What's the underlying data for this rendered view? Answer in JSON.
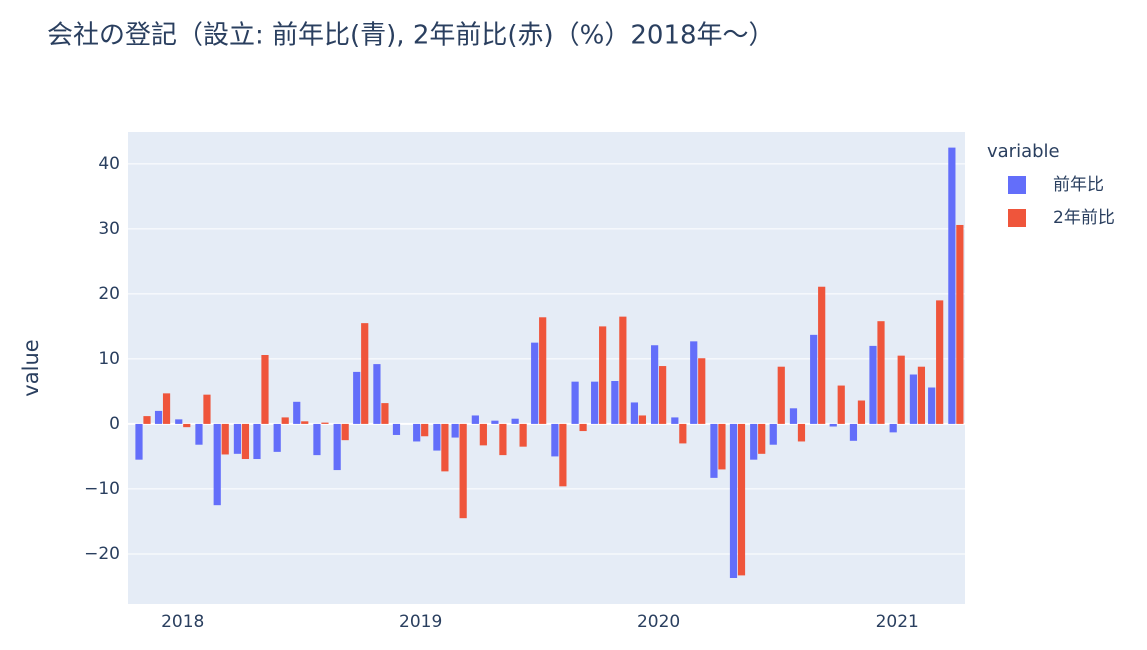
{
  "chart_data": {
    "type": "bar",
    "title": "会社の登記（設立: 前年比(青), 2年前比(赤)（%）2018年〜）",
    "y_label": "value",
    "legend_title": "variable",
    "x": [
      "2017-11",
      "2017-12",
      "2018-01",
      "2018-02",
      "2018-03",
      "2018-04",
      "2018-05",
      "2018-06",
      "2018-07",
      "2018-08",
      "2018-09",
      "2018-10",
      "2018-11",
      "2018-12",
      "2019-01",
      "2019-02",
      "2019-03",
      "2019-04",
      "2019-05",
      "2019-06",
      "2019-07",
      "2019-08",
      "2019-09",
      "2019-10",
      "2019-11",
      "2019-12",
      "2020-01",
      "2020-02",
      "2020-03",
      "2020-04",
      "2020-05",
      "2020-06",
      "2020-07",
      "2020-08",
      "2020-09",
      "2020-10",
      "2020-11",
      "2020-12",
      "2021-01",
      "2021-02",
      "2021-03",
      "2021-04"
    ],
    "series": [
      {
        "name": "前年比",
        "color": "#636efa",
        "values": [
          -5.5,
          2.0,
          0.7,
          -3.2,
          -12.5,
          -4.6,
          -5.4,
          -4.3,
          3.4,
          -4.8,
          -7.1,
          8.0,
          9.2,
          -1.7,
          -2.7,
          -4.1,
          -2.1,
          1.3,
          0.5,
          0.8,
          12.5,
          -5.0,
          6.5,
          6.5,
          6.6,
          3.3,
          12.1,
          1.0,
          12.7,
          -8.3,
          -23.7,
          -5.5,
          -3.2,
          2.4,
          13.7,
          -0.4,
          -2.6,
          12.0,
          -1.3,
          7.6,
          5.6,
          42.5
        ]
      },
      {
        "name": "2年前比",
        "color": "#ef553b",
        "values": [
          1.2,
          4.7,
          -0.5,
          4.5,
          -4.7,
          -5.4,
          10.6,
          1.0,
          0.4,
          0.2,
          -2.5,
          15.5,
          3.2,
          0,
          -1.9,
          -7.3,
          -14.5,
          -3.3,
          -4.8,
          -3.5,
          16.4,
          -9.6,
          -1.1,
          15.0,
          16.5,
          1.3,
          8.9,
          -3.0,
          10.1,
          -7.0,
          -23.3,
          -4.6,
          8.8,
          -2.7,
          21.1,
          5.9,
          3.6,
          15.8,
          10.5,
          8.8,
          19.0,
          30.6
        ]
      }
    ],
    "xlim": [
      "2017-10-09",
      "2021-04-15"
    ],
    "xticks": [
      {
        "value": "2018-01",
        "label": "2018"
      },
      {
        "value": "2019-01",
        "label": "2019"
      },
      {
        "value": "2020-01",
        "label": "2020"
      },
      {
        "value": "2021-01",
        "label": "2021"
      }
    ],
    "ylim": [
      -27.7,
      44.9
    ],
    "yticks": [
      {
        "value": -20,
        "label": "−20"
      },
      {
        "value": -10,
        "label": "−10"
      },
      0,
      10,
      20,
      30,
      40
    ],
    "grid": true,
    "barmode": "group",
    "legend": "right"
  }
}
